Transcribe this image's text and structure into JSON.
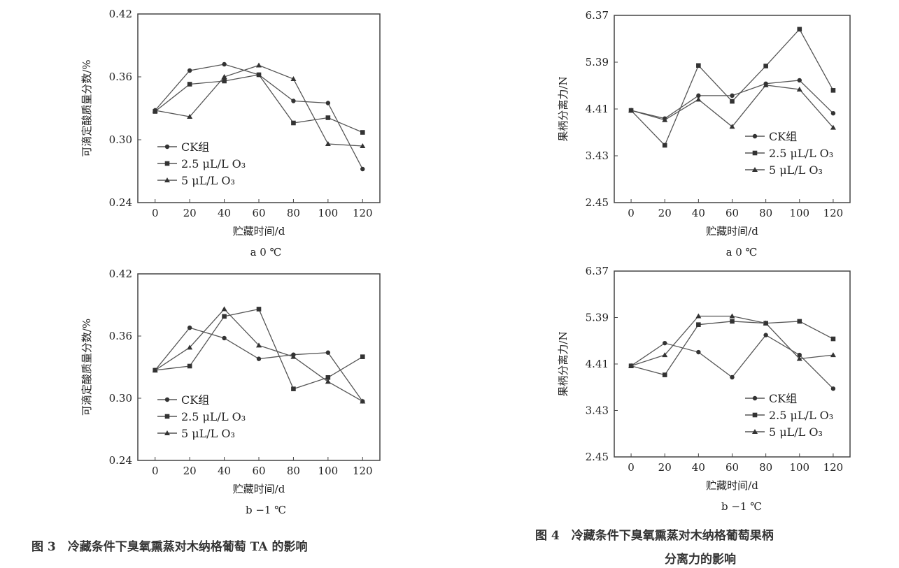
{
  "figure3_caption": "图 3　冷藏条件下臭氧熏蒸对木纳格葡萄 TA 的影响",
  "figure4_caption_line1": "图 4　冷藏条件下臭氧熏蒸对木纳格葡萄果柄",
  "figure4_caption_line2": "分离力的影响",
  "chart_data": [
    {
      "type": "line",
      "subtitle": "a 0 ℃",
      "xlabel": "贮藏时间/d",
      "ylabel": "可滴定酸质量分数/%",
      "x": [
        0,
        20,
        40,
        60,
        80,
        100,
        120
      ],
      "xlim": [
        -10,
        130
      ],
      "ylim": [
        0.24,
        0.42
      ],
      "yticks": [
        "0.24",
        "0.30",
        "0.36",
        "0.42"
      ],
      "legend": "bottom-left",
      "grid": false,
      "series": [
        {
          "name": "CK组",
          "marker": "circle",
          "values": [
            0.328,
            0.366,
            0.372,
            0.362,
            0.337,
            0.335,
            0.272
          ]
        },
        {
          "name": "2.5 μL/L O₃",
          "marker": "square",
          "values": [
            0.327,
            0.353,
            0.356,
            0.362,
            0.316,
            0.321,
            0.307
          ]
        },
        {
          "name": "5 μL/L O₃",
          "marker": "triangle",
          "values": [
            0.328,
            0.322,
            0.36,
            0.371,
            0.358,
            0.296,
            0.294
          ]
        }
      ]
    },
    {
      "type": "line",
      "subtitle": "b −1 ℃",
      "xlabel": "贮藏时间/d",
      "ylabel": "可滴定酸质量分数/%",
      "x": [
        0,
        20,
        40,
        60,
        80,
        100,
        120
      ],
      "xlim": [
        -10,
        130
      ],
      "ylim": [
        0.24,
        0.42
      ],
      "yticks": [
        "0.24",
        "0.30",
        "0.36",
        "0.42"
      ],
      "legend": "bottom-left",
      "grid": false,
      "series": [
        {
          "name": "CK组",
          "marker": "circle",
          "values": [
            0.327,
            0.368,
            0.358,
            0.338,
            0.342,
            0.344,
            0.297
          ]
        },
        {
          "name": "2.5 μL/L O₃",
          "marker": "square",
          "values": [
            0.327,
            0.331,
            0.379,
            0.386,
            0.309,
            0.32,
            0.34
          ]
        },
        {
          "name": "5 μL/L O₃",
          "marker": "triangle",
          "values": [
            0.327,
            0.349,
            0.386,
            0.351,
            0.34,
            0.316,
            0.297
          ]
        }
      ]
    },
    {
      "type": "line",
      "subtitle": "a 0 ℃",
      "xlabel": "贮藏时间/d",
      "ylabel": "果柄分离力/N",
      "x": [
        0,
        20,
        40,
        60,
        80,
        100,
        120
      ],
      "xlim": [
        -10,
        130
      ],
      "ylim": [
        2.45,
        6.37
      ],
      "yticks": [
        "2.45",
        "3.43",
        "4.41",
        "5.39",
        "6.37"
      ],
      "legend": "bottom-right",
      "grid": false,
      "series": [
        {
          "name": "CK组",
          "marker": "circle",
          "values": [
            4.38,
            4.21,
            4.69,
            4.69,
            4.94,
            5.01,
            4.32
          ]
        },
        {
          "name": "2.5 μL/L O₃",
          "marker": "square",
          "values": [
            4.38,
            3.65,
            5.32,
            4.57,
            5.31,
            6.08,
            4.8
          ]
        },
        {
          "name": "5 μL/L O₃",
          "marker": "triangle",
          "values": [
            4.38,
            4.18,
            4.61,
            4.04,
            4.91,
            4.82,
            4.02
          ]
        }
      ]
    },
    {
      "type": "line",
      "subtitle": "b −1 ℃",
      "xlabel": "贮藏时间/d",
      "ylabel": "果柄分离力/N",
      "x": [
        0,
        20,
        40,
        60,
        80,
        100,
        120
      ],
      "xlim": [
        -10,
        130
      ],
      "ylim": [
        2.45,
        6.37
      ],
      "yticks": [
        "2.45",
        "3.43",
        "4.41",
        "5.39",
        "6.37"
      ],
      "legend": "bottom-right",
      "grid": false,
      "series": [
        {
          "name": "CK组",
          "marker": "circle",
          "values": [
            4.37,
            4.85,
            4.66,
            4.13,
            5.02,
            4.6,
            3.89
          ]
        },
        {
          "name": "2.5 μL/L O₃",
          "marker": "square",
          "values": [
            4.37,
            4.18,
            5.24,
            5.31,
            5.27,
            5.31,
            4.94
          ]
        },
        {
          "name": "5 μL/L O₃",
          "marker": "triangle",
          "values": [
            4.37,
            4.6,
            5.42,
            5.42,
            5.27,
            4.52,
            4.6
          ]
        }
      ]
    }
  ]
}
